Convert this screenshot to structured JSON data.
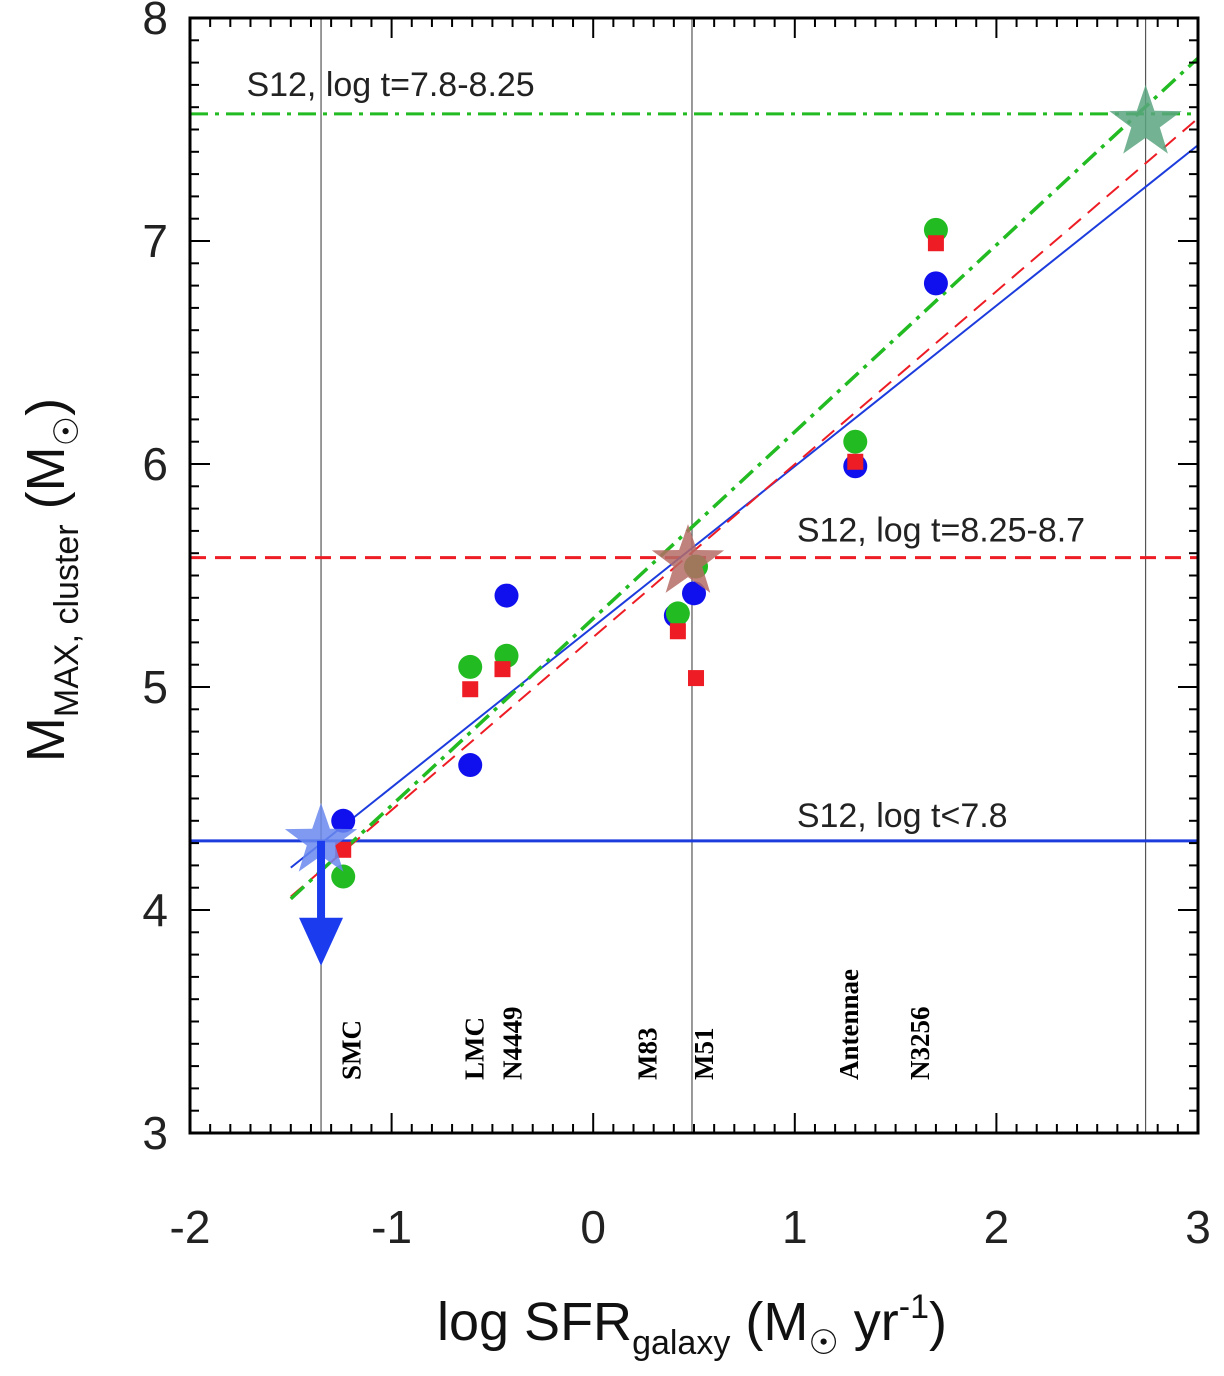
{
  "chart_data": {
    "type": "scatter",
    "xlim": [
      -2,
      3
    ],
    "ylim": [
      3,
      8
    ],
    "x_ticks": [
      "-2",
      "-1",
      "0",
      "1",
      "2",
      "3"
    ],
    "y_ticks": [
      "3",
      "4",
      "5",
      "6",
      "7",
      "8"
    ],
    "xlabel": {
      "prefix": "log SFR",
      "sub": "galaxy",
      "unit_open": " (M",
      "unit_mid": " yr",
      "unit_sup": "-1",
      "unit_close": ")"
    },
    "ylabel": {
      "prefix": "M",
      "sub": "MAX, cluster",
      "unit_open": " (M",
      "unit_close": ")"
    },
    "galaxy_lines_x": [
      -1.35,
      0.49,
      2.74
    ],
    "galaxy_labels": [
      {
        "name": "SMC",
        "x": -1.2
      },
      {
        "name": "LMC",
        "x": -0.59
      },
      {
        "name": "N4449",
        "x": -0.4
      },
      {
        "name": "M83",
        "x": 0.27
      },
      {
        "name": "M51",
        "x": 0.55
      },
      {
        "name": "Antennae",
        "x": 1.27
      },
      {
        "name": "N3256",
        "x": 1.62
      }
    ],
    "hlines": [
      {
        "label": "S12, log t=7.8-8.25",
        "y": 7.57,
        "color": "#22bb22",
        "style": "dashdot"
      },
      {
        "label": "S12, log t=8.25-8.7",
        "y": 5.58,
        "color": "#ee1c24",
        "style": "dashed"
      },
      {
        "label": "S12, log t<7.8",
        "y": 4.31,
        "color": "#1c3cdd",
        "style": "solid"
      }
    ],
    "fits": [
      {
        "color": "#1c3cdd",
        "style": "solid",
        "x": [
          -1.5,
          3.0
        ],
        "y": [
          4.19,
          7.43
        ]
      },
      {
        "color": "#ee1c24",
        "style": "dashed",
        "x": [
          -1.5,
          3.0
        ],
        "y": [
          4.06,
          7.55
        ]
      },
      {
        "color": "#22bb22",
        "style": "dashdot",
        "x": [
          -1.5,
          3.0
        ],
        "y": [
          4.05,
          7.82
        ]
      }
    ],
    "series": [
      {
        "marker": "circle",
        "color": "#1010ee",
        "x": [
          -1.24,
          -0.61,
          -0.43,
          0.41,
          0.5,
          1.3,
          1.7
        ],
        "y": [
          4.4,
          4.65,
          5.41,
          5.32,
          5.42,
          5.99,
          6.81
        ]
      },
      {
        "marker": "circle",
        "color": "#22bb22",
        "x": [
          -1.24,
          -0.61,
          -0.43,
          0.42,
          0.51,
          1.3,
          1.7
        ],
        "y": [
          4.15,
          5.09,
          5.14,
          5.33,
          5.54,
          6.1,
          7.05
        ]
      },
      {
        "marker": "square",
        "color": "#ee1c24",
        "x": [
          -1.24,
          -0.61,
          -0.45,
          0.42,
          0.51,
          1.3,
          1.7
        ],
        "y": [
          4.27,
          4.99,
          5.08,
          5.25,
          5.04,
          6.01,
          6.99
        ]
      }
    ],
    "stars": [
      {
        "color": "#6a88ee",
        "x": -1.35,
        "y": 4.31
      },
      {
        "color": "#b56c66",
        "x": 0.47,
        "y": 5.56
      },
      {
        "color": "#5aa57f",
        "x": 2.74,
        "y": 7.53
      }
    ],
    "upper_limit": {
      "color": "#1a3cee",
      "x": -1.35,
      "y_from": 4.31,
      "y_to": 3.75
    }
  }
}
